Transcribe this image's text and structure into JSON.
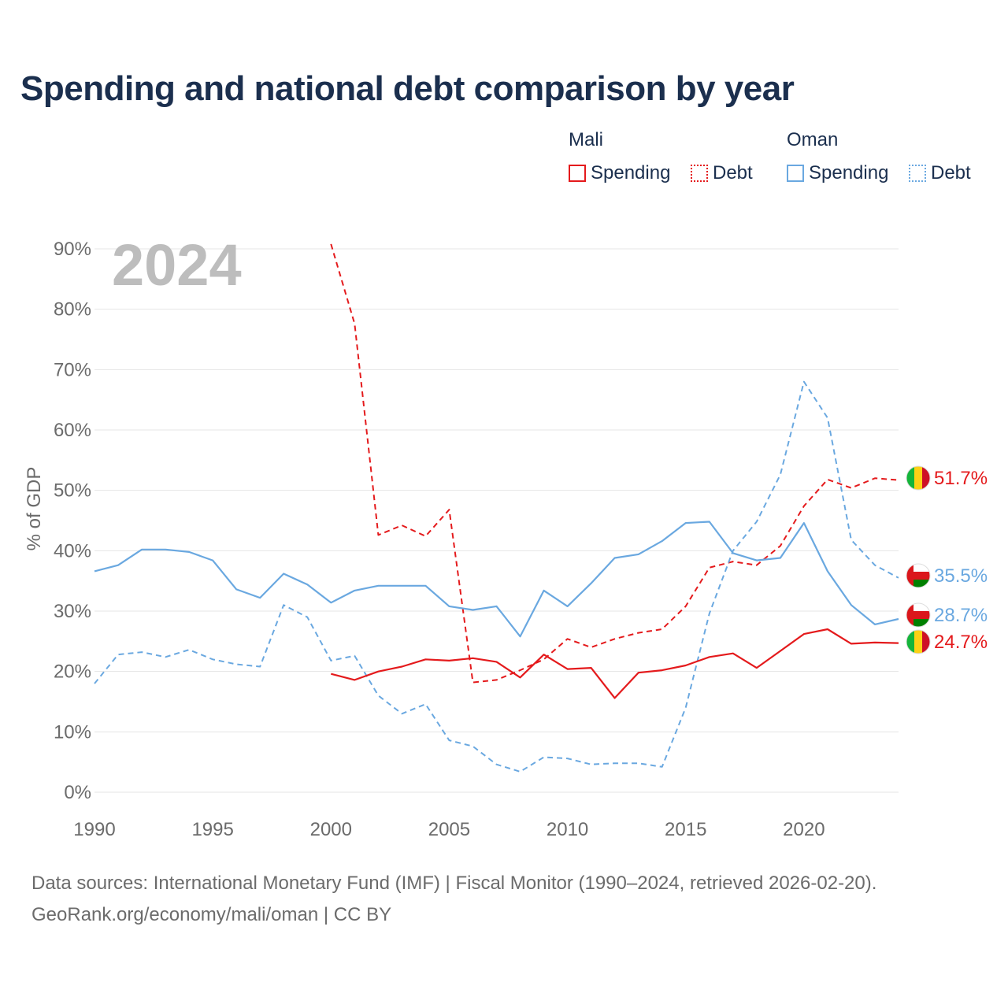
{
  "title": "Spending and national debt comparison by year",
  "legend": {
    "groups": [
      {
        "name": "Mali",
        "items": [
          {
            "label": "Spending",
            "style": "solid",
            "color": "#e41a1c"
          },
          {
            "label": "Debt",
            "style": "dotted",
            "color": "#e41a1c"
          }
        ]
      },
      {
        "name": "Oman",
        "items": [
          {
            "label": "Spending",
            "style": "solid",
            "color": "#6aa8e0"
          },
          {
            "label": "Debt",
            "style": "dotted",
            "color": "#6aa8e0"
          }
        ]
      }
    ]
  },
  "footer": {
    "line1": "Data sources: International Monetary Fund (IMF) | Fiscal Monitor (1990–2024, retrieved 2026-02-20).",
    "line2": "GeoRank.org/economy/mali/oman | CC BY"
  },
  "chart_data": {
    "type": "line",
    "title": "Spending and national debt comparison by year",
    "year_marker": "2024",
    "xlabel": "",
    "ylabel": "% of GDP",
    "xlim": [
      1990,
      2024
    ],
    "ylim": [
      0,
      90
    ],
    "xticks": [
      1990,
      1995,
      2000,
      2005,
      2010,
      2015,
      2020
    ],
    "yticks": [
      0,
      10,
      20,
      30,
      40,
      50,
      60,
      70,
      80,
      90
    ],
    "ytick_labels": [
      "0%",
      "10%",
      "20%",
      "30%",
      "40%",
      "50%",
      "60%",
      "70%",
      "80%",
      "90%"
    ],
    "grid": true,
    "series": [
      {
        "name": "Mali Debt",
        "country": "Mali",
        "metric": "Debt",
        "color": "#e41a1c",
        "dash": "dashed",
        "end_label": "51.7%",
        "flag": "mali",
        "x": [
          2000,
          2001,
          2002,
          2003,
          2004,
          2005,
          2006,
          2007,
          2008,
          2009,
          2010,
          2011,
          2012,
          2013,
          2014,
          2015,
          2016,
          2017,
          2018,
          2019,
          2020,
          2021,
          2022,
          2023,
          2024
        ],
        "y": [
          90.8,
          77.6,
          42.6,
          44.2,
          42.4,
          46.8,
          18.2,
          18.6,
          20.2,
          22.0,
          25.4,
          24.0,
          25.4,
          26.4,
          27.0,
          30.8,
          37.2,
          38.2,
          37.6,
          40.8,
          47.4,
          51.8,
          50.4,
          52.0,
          51.7
        ]
      },
      {
        "name": "Oman Debt",
        "country": "Oman",
        "metric": "Debt",
        "color": "#6aa8e0",
        "dash": "dashed",
        "end_label": "35.5%",
        "flag": "oman",
        "x": [
          1990,
          1991,
          1992,
          1993,
          1994,
          1995,
          1996,
          1997,
          1998,
          1999,
          2000,
          2001,
          2002,
          2003,
          2004,
          2005,
          2006,
          2007,
          2008,
          2009,
          2010,
          2011,
          2012,
          2013,
          2014,
          2015,
          2016,
          2017,
          2018,
          2019,
          2020,
          2021,
          2022,
          2023,
          2024
        ],
        "y": [
          18.0,
          22.8,
          23.2,
          22.4,
          23.6,
          22.0,
          21.2,
          20.8,
          31.0,
          29.0,
          21.8,
          22.6,
          16.0,
          13.0,
          14.6,
          8.6,
          7.6,
          4.6,
          3.4,
          5.8,
          5.6,
          4.6,
          4.8,
          4.8,
          4.2,
          14.0,
          29.6,
          40.0,
          44.8,
          52.6,
          68.0,
          62.0,
          41.8,
          37.6,
          35.5
        ]
      },
      {
        "name": "Oman Spending",
        "country": "Oman",
        "metric": "Spending",
        "color": "#6aa8e0",
        "dash": "solid",
        "end_label": "28.7%",
        "flag": "oman",
        "x": [
          1990,
          1991,
          1992,
          1993,
          1994,
          1995,
          1996,
          1997,
          1998,
          1999,
          2000,
          2001,
          2002,
          2003,
          2004,
          2005,
          2006,
          2007,
          2008,
          2009,
          2010,
          2011,
          2012,
          2013,
          2014,
          2015,
          2016,
          2017,
          2018,
          2019,
          2020,
          2021,
          2022,
          2023,
          2024
        ],
        "y": [
          36.6,
          37.6,
          40.2,
          40.2,
          39.8,
          38.4,
          33.6,
          32.2,
          36.2,
          34.4,
          31.4,
          33.4,
          34.2,
          34.2,
          34.2,
          30.8,
          30.2,
          30.8,
          25.8,
          33.4,
          30.8,
          34.6,
          38.8,
          39.4,
          41.6,
          44.6,
          44.8,
          39.6,
          38.4,
          38.8,
          44.6,
          36.6,
          31.0,
          27.8,
          28.7
        ]
      },
      {
        "name": "Mali Spending",
        "country": "Mali",
        "metric": "Spending",
        "color": "#e41a1c",
        "dash": "solid",
        "end_label": "24.7%",
        "flag": "mali",
        "x": [
          2000,
          2001,
          2002,
          2003,
          2004,
          2005,
          2006,
          2007,
          2008,
          2009,
          2010,
          2011,
          2012,
          2013,
          2014,
          2015,
          2016,
          2017,
          2018,
          2019,
          2020,
          2021,
          2022,
          2023,
          2024
        ],
        "y": [
          19.6,
          18.6,
          20.0,
          20.8,
          22.0,
          21.8,
          22.2,
          21.6,
          19.0,
          22.8,
          20.4,
          20.6,
          15.6,
          19.8,
          20.2,
          21.0,
          22.4,
          23.0,
          20.6,
          23.4,
          26.2,
          27.0,
          24.6,
          24.8,
          24.7
        ]
      }
    ]
  }
}
